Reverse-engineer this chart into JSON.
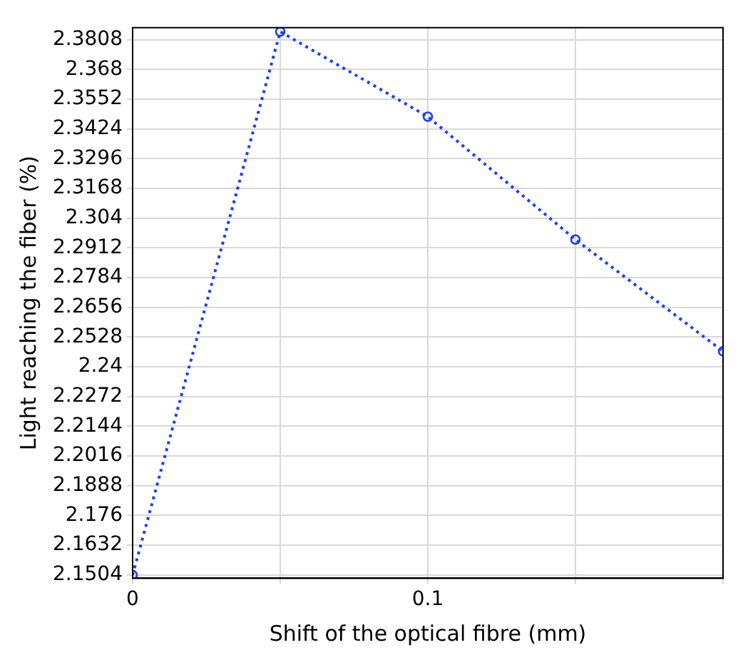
{
  "chart_data": {
    "type": "line",
    "xlabel": "Shift of the optical fibre (mm)",
    "ylabel": "Light reaching the fiber (%)",
    "x": [
      0,
      0.05,
      0.1,
      0.15,
      0.2
    ],
    "series": [
      {
        "color": "#1a3cff",
        "values": [
          2.1504,
          2.3843,
          2.3477,
          2.2948,
          2.2467
        ]
      }
    ],
    "xlim": [
      0,
      0.2
    ],
    "xticks": [
      0,
      {
        "value": 0.05,
        "label": null
      },
      0.1,
      {
        "value": 0.15,
        "label": null
      },
      {
        "value": 0.2,
        "label": null
      }
    ],
    "ylim": [
      2.149,
      2.386
    ],
    "yticks": [
      2.1504,
      2.1632,
      2.176,
      2.1888,
      2.2016,
      2.2144,
      2.2272,
      2.24,
      2.2528,
      2.2656,
      2.2784,
      2.2912,
      2.304,
      2.3168,
      2.3296,
      2.3424,
      2.3552,
      2.368,
      2.3808
    ],
    "grid": true,
    "marker": "circle",
    "line_style": "dotted"
  }
}
